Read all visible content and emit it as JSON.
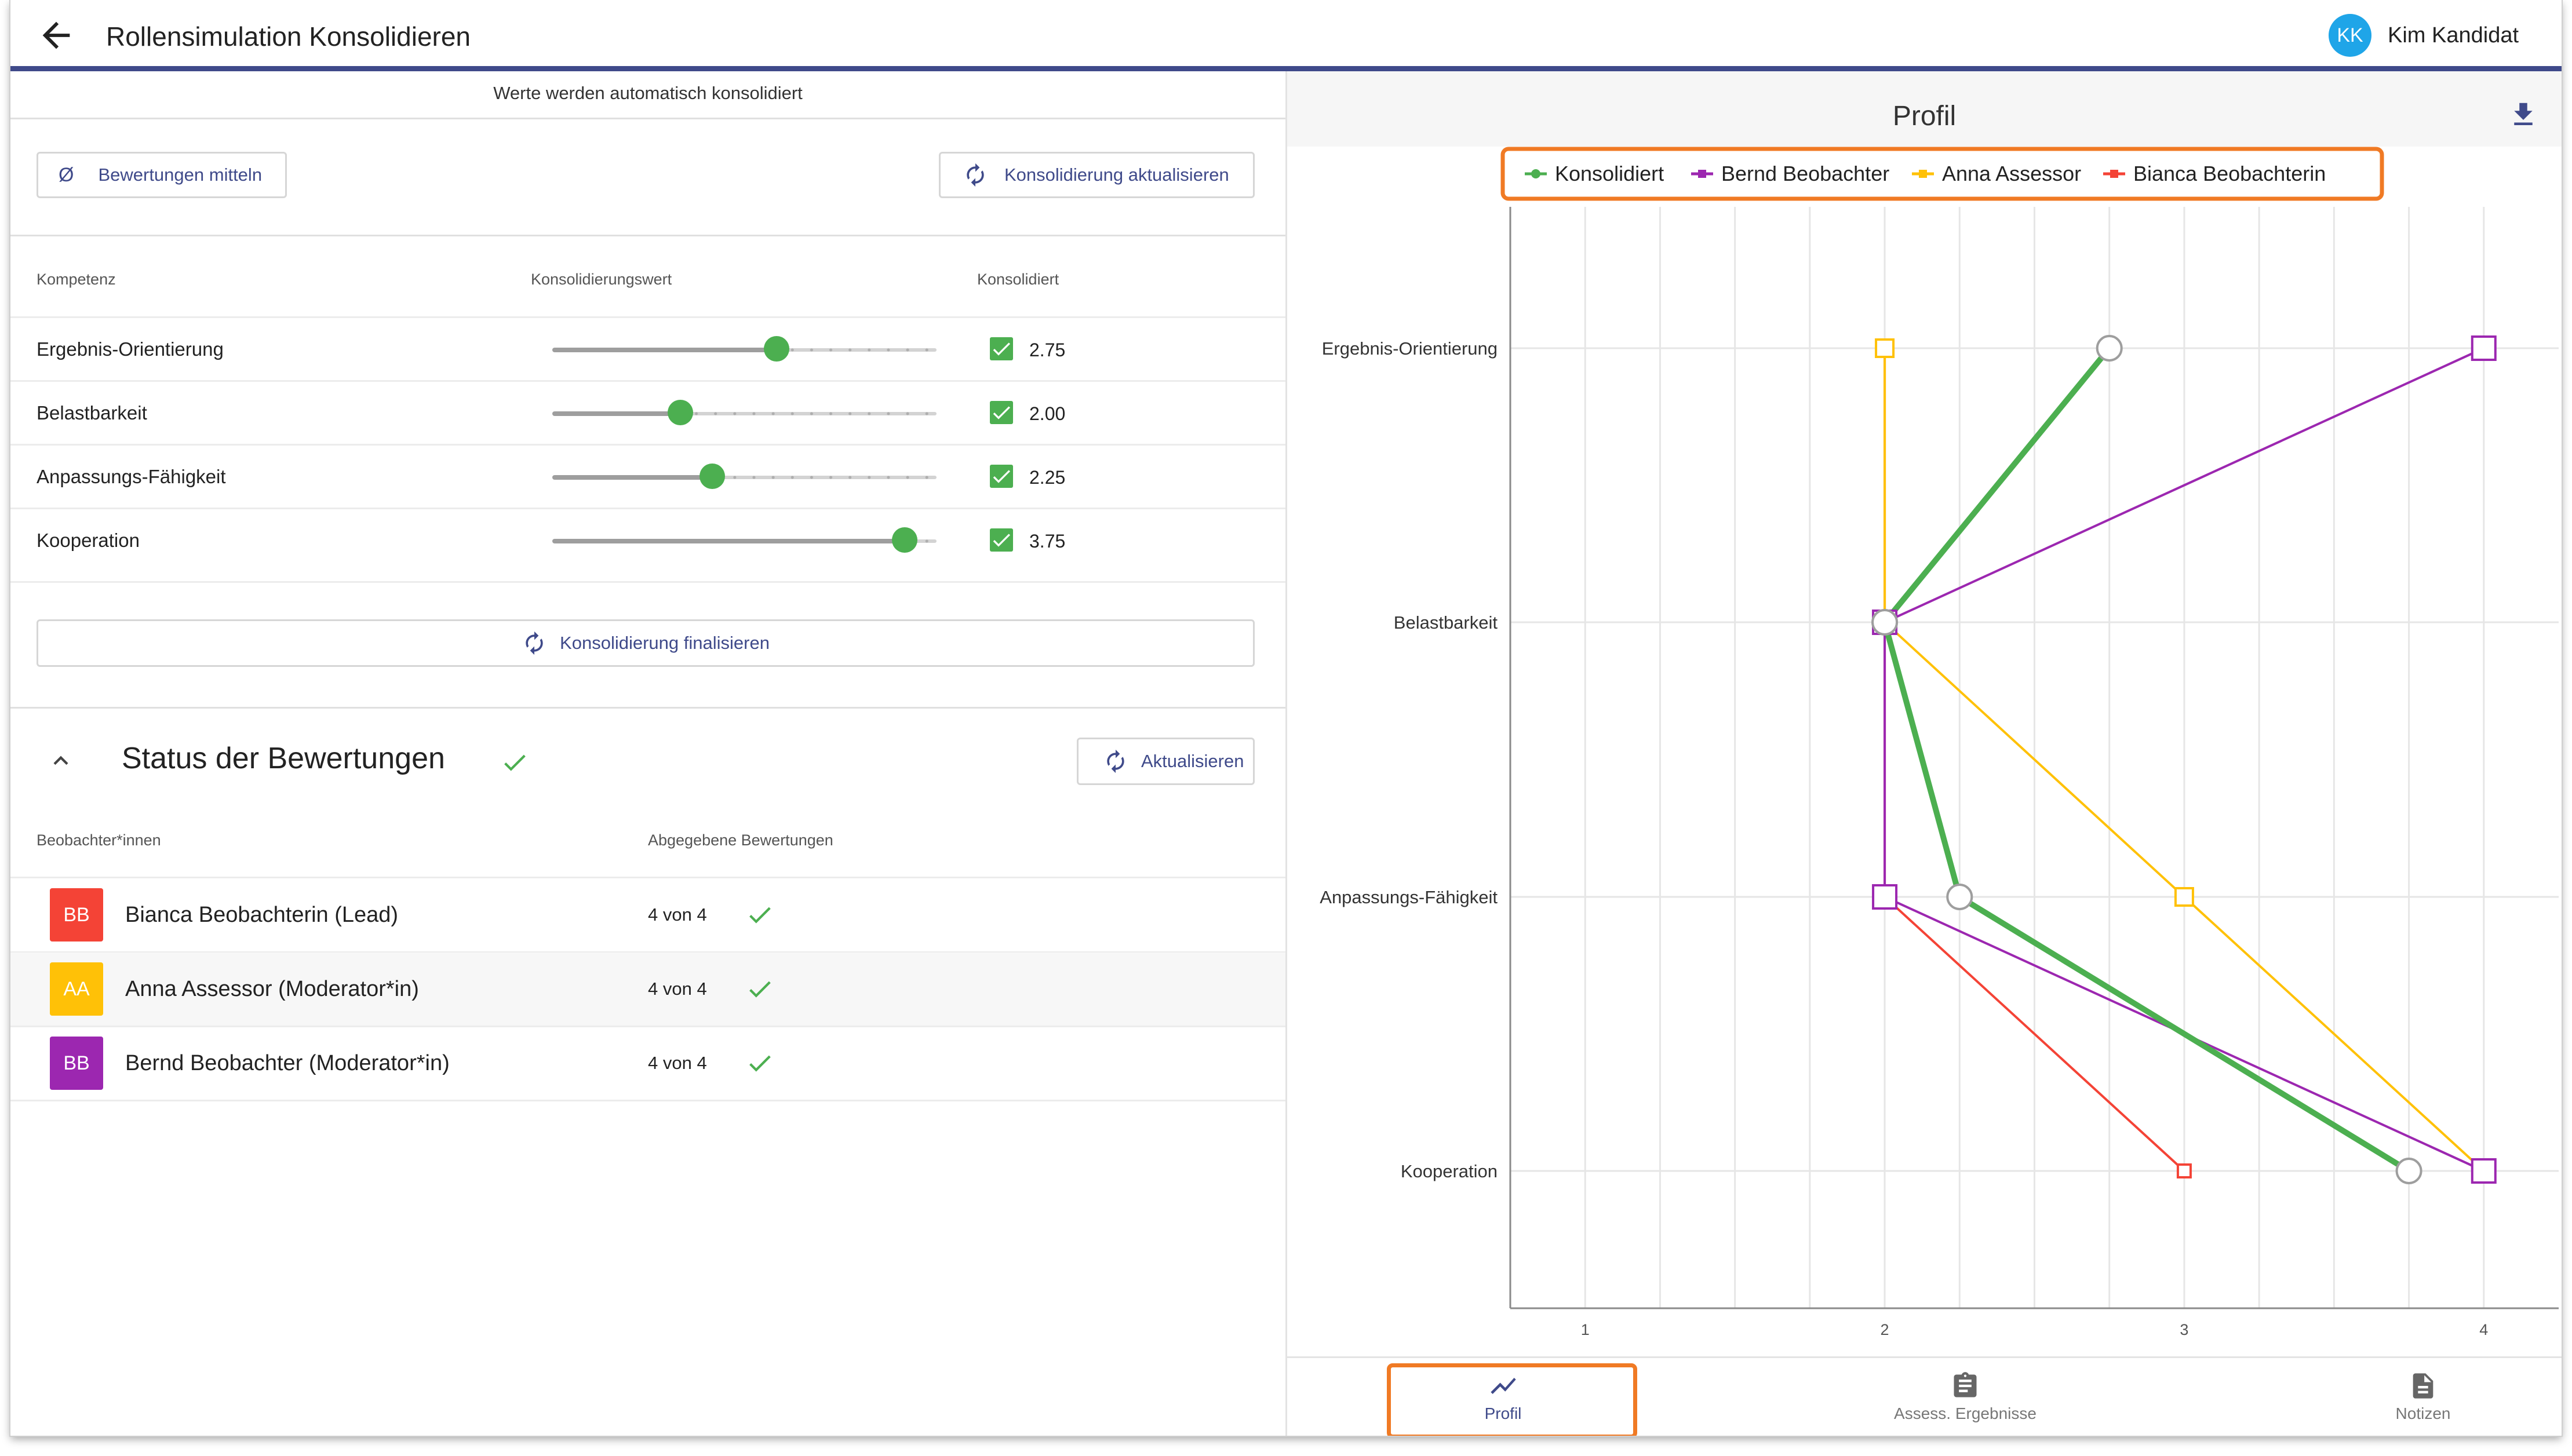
{
  "header": {
    "title": "Rollensimulation Konsolidieren",
    "user_initials": "KK",
    "user_name": "Kim Kandidat",
    "back_icon": "arrow-left-icon"
  },
  "consolidation": {
    "auto_note": "Werte werden automatisch konsolidiert",
    "average_symbol": "Ø",
    "average_button": "Bewertungen mitteln",
    "refresh_button": "Konsolidierung aktualisieren",
    "columns": [
      "Kompetenz",
      "Konsolidierungswert",
      "Konsolidiert"
    ],
    "slider_range": [
      1,
      4
    ],
    "rows": [
      {
        "name": "Ergebnis-Orientierung",
        "value": 2.75,
        "display": "2.75",
        "checked": true
      },
      {
        "name": "Belastbarkeit",
        "value": 2.0,
        "display": "2.00",
        "checked": true
      },
      {
        "name": "Anpassungs-Fähigkeit",
        "value": 2.25,
        "display": "2.25",
        "checked": true
      },
      {
        "name": "Kooperation",
        "value": 3.75,
        "display": "3.75",
        "checked": true
      }
    ],
    "finalize_button": "Konsolidierung finalisieren"
  },
  "status": {
    "title": "Status der Bewertungen",
    "refresh_button": "Aktualisieren",
    "columns": [
      "Beobachter*innen",
      "Abgegebene Bewertungen"
    ],
    "observers": [
      {
        "initials": "BB",
        "name": "Bianca Beobachterin (Lead)",
        "count": "4 von 4",
        "color": "#f44336"
      },
      {
        "initials": "AA",
        "name": "Anna Assessor (Moderator*in)",
        "count": "4 von 4",
        "color": "#ffc107"
      },
      {
        "initials": "BB",
        "name": "Bernd Beobachter (Moderator*in)",
        "count": "4 von 4",
        "color": "#9c27b0"
      }
    ]
  },
  "profile_panel": {
    "title": "Profil",
    "download_icon": "download-icon"
  },
  "chart_data": {
    "type": "line",
    "orientation": "horizontal-value-axis",
    "categories": [
      "Ergebnis-Orientierung",
      "Belastbarkeit",
      "Anpassungs-Fähigkeit",
      "Kooperation"
    ],
    "xlim": [
      0.75,
      4.25
    ],
    "xticks": [
      "1",
      "2",
      "3",
      "4"
    ],
    "grid": true,
    "legend_position": "top",
    "series": [
      {
        "name": "Konsolidiert",
        "color": "#4caf50",
        "values": [
          2.75,
          2.0,
          2.25,
          3.75
        ],
        "marker": "circle"
      },
      {
        "name": "Bernd Beobachter",
        "color": "#9c27b0",
        "values": [
          4,
          2,
          2,
          4
        ],
        "marker": "square"
      },
      {
        "name": "Anna Assessor",
        "color": "#ffc107",
        "values": [
          2,
          2,
          3,
          4
        ],
        "marker": "square"
      },
      {
        "name": "Bianca Beobachterin",
        "color": "#f44336",
        "values": [
          2,
          2,
          2,
          3
        ],
        "marker": "square"
      }
    ]
  },
  "bottom_nav": {
    "items": [
      {
        "label": "Profil",
        "icon": "trending-icon",
        "active": true
      },
      {
        "label": "Assess. Ergebnisse",
        "icon": "clipboard-icon",
        "active": false
      },
      {
        "label": "Notizen",
        "icon": "document-icon",
        "active": false
      }
    ]
  },
  "colors": {
    "accent": "#3f4a8a",
    "success": "#4caf50",
    "highlight": "#f07a24"
  }
}
